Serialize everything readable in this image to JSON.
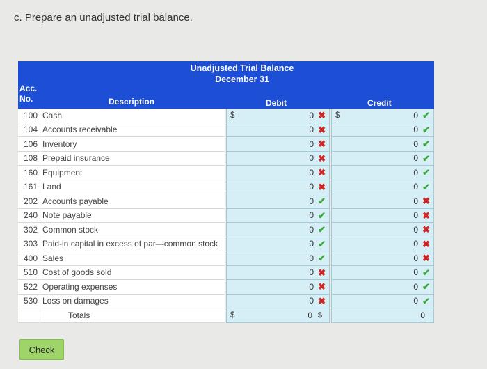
{
  "instruction": "c. Prepare an unadjusted trial balance.",
  "table": {
    "title_line1": "Unadjusted Trial Balance",
    "title_line2": "December 31",
    "col_acc_line1": "Acc.",
    "col_acc_line2": "No.",
    "col_description": "Description",
    "col_debit": "Debit",
    "col_credit": "Credit",
    "rows": [
      {
        "acc": "100",
        "desc": "Cash",
        "debit_dollar": "$",
        "debit": "0",
        "debit_status": "incorrect",
        "credit_dollar": "$",
        "credit": "0",
        "credit_status": "correct"
      },
      {
        "acc": "104",
        "desc": "Accounts receivable",
        "debit": "0",
        "debit_status": "incorrect",
        "credit": "0",
        "credit_status": "correct"
      },
      {
        "acc": "106",
        "desc": "Inventory",
        "debit": "0",
        "debit_status": "incorrect",
        "credit": "0",
        "credit_status": "correct"
      },
      {
        "acc": "108",
        "desc": "Prepaid insurance",
        "debit": "0",
        "debit_status": "incorrect",
        "credit": "0",
        "credit_status": "correct"
      },
      {
        "acc": "160",
        "desc": "Equipment",
        "debit": "0",
        "debit_status": "incorrect",
        "credit": "0",
        "credit_status": "correct"
      },
      {
        "acc": "161",
        "desc": "Land",
        "debit": "0",
        "debit_status": "incorrect",
        "credit": "0",
        "credit_status": "correct"
      },
      {
        "acc": "202",
        "desc": "Accounts payable",
        "debit": "0",
        "debit_status": "correct",
        "credit": "0",
        "credit_status": "incorrect"
      },
      {
        "acc": "240",
        "desc": "Note payable",
        "debit": "0",
        "debit_status": "correct",
        "credit": "0",
        "credit_status": "incorrect"
      },
      {
        "acc": "302",
        "desc": "Common stock",
        "debit": "0",
        "debit_status": "correct",
        "credit": "0",
        "credit_status": "incorrect"
      },
      {
        "acc": "303",
        "desc": "Paid-in capital in excess of par—common stock",
        "debit": "0",
        "debit_status": "correct",
        "credit": "0",
        "credit_status": "incorrect"
      },
      {
        "acc": "400",
        "desc": "Sales",
        "debit": "0",
        "debit_status": "correct",
        "credit": "0",
        "credit_status": "incorrect"
      },
      {
        "acc": "510",
        "desc": "Cost of goods sold",
        "debit": "0",
        "debit_status": "incorrect",
        "credit": "0",
        "credit_status": "correct"
      },
      {
        "acc": "522",
        "desc": "Operating expenses",
        "debit": "0",
        "debit_status": "incorrect",
        "credit": "0",
        "credit_status": "correct"
      },
      {
        "acc": "530",
        "desc": "Loss on damages",
        "debit": "0",
        "debit_status": "incorrect",
        "credit": "0",
        "credit_status": "correct"
      }
    ],
    "totals": {
      "label": "Totals",
      "debit_dollar": "$",
      "debit": "0",
      "credit_dollar": "$",
      "credit": "0"
    }
  },
  "status_icons": {
    "correct": "✔",
    "incorrect": "✖"
  },
  "colors": {
    "header": "#1d4fd6",
    "input_bg": "#d6eef6",
    "correct": "#3aa83a",
    "incorrect": "#d32424",
    "check_button": "#9ed469"
  },
  "check_button_label": "Check"
}
